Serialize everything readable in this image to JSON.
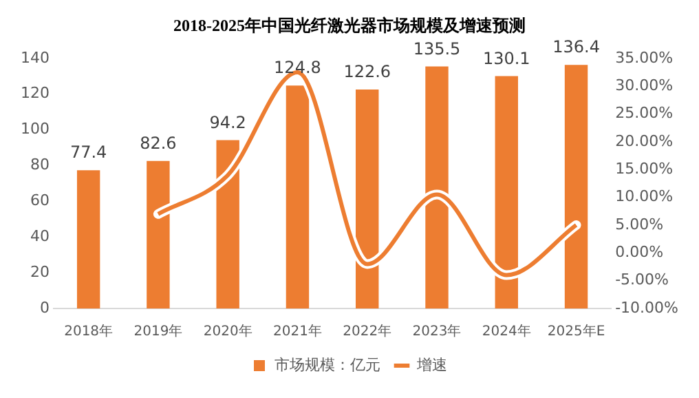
{
  "chart_data": {
    "type": "bar",
    "title": "2018-2025年中国光纤激光器市场规模及增速预测",
    "categories": [
      "2018年",
      "2019年",
      "2020年",
      "2021年",
      "2022年",
      "2023年",
      "2024年",
      "2025年E"
    ],
    "series": [
      {
        "name": "市场规模：亿元",
        "color": "#ed7d31",
        "values": [
          77.4,
          82.6,
          94.2,
          124.8,
          122.6,
          135.5,
          130.1,
          136.4
        ],
        "value_labels": [
          "77.4",
          "82.6",
          "94.2",
          "124.8",
          "122.6",
          "135.5",
          "130.1",
          "136.4"
        ]
      },
      {
        "name": "增速",
        "type": "line",
        "axis": "y2",
        "color": "#ed7d31",
        "values": [
          null,
          7,
          14,
          32.5,
          -2,
          10.5,
          -4,
          5
        ]
      }
    ],
    "ylim": [
      0,
      140
    ],
    "yticks": [
      0,
      20,
      40,
      60,
      80,
      100,
      120,
      140
    ],
    "y2lim": [
      -10,
      35
    ],
    "y2ticks": [
      {
        "value": -10,
        "label": "-10.00%"
      },
      {
        "value": -5,
        "label": "-5.00%"
      },
      {
        "value": 0,
        "label": "0.00%"
      },
      {
        "value": 5,
        "label": "5.00%"
      },
      {
        "value": 10,
        "label": "10.00%"
      },
      {
        "value": 15,
        "label": "15.00%"
      },
      {
        "value": 20,
        "label": "20.00%"
      },
      {
        "value": 25,
        "label": "25.00%"
      },
      {
        "value": 30,
        "label": "30.00%"
      },
      {
        "value": 35,
        "label": "35.00%"
      }
    ],
    "grid": false,
    "legend": "bottom",
    "marker": "none"
  }
}
